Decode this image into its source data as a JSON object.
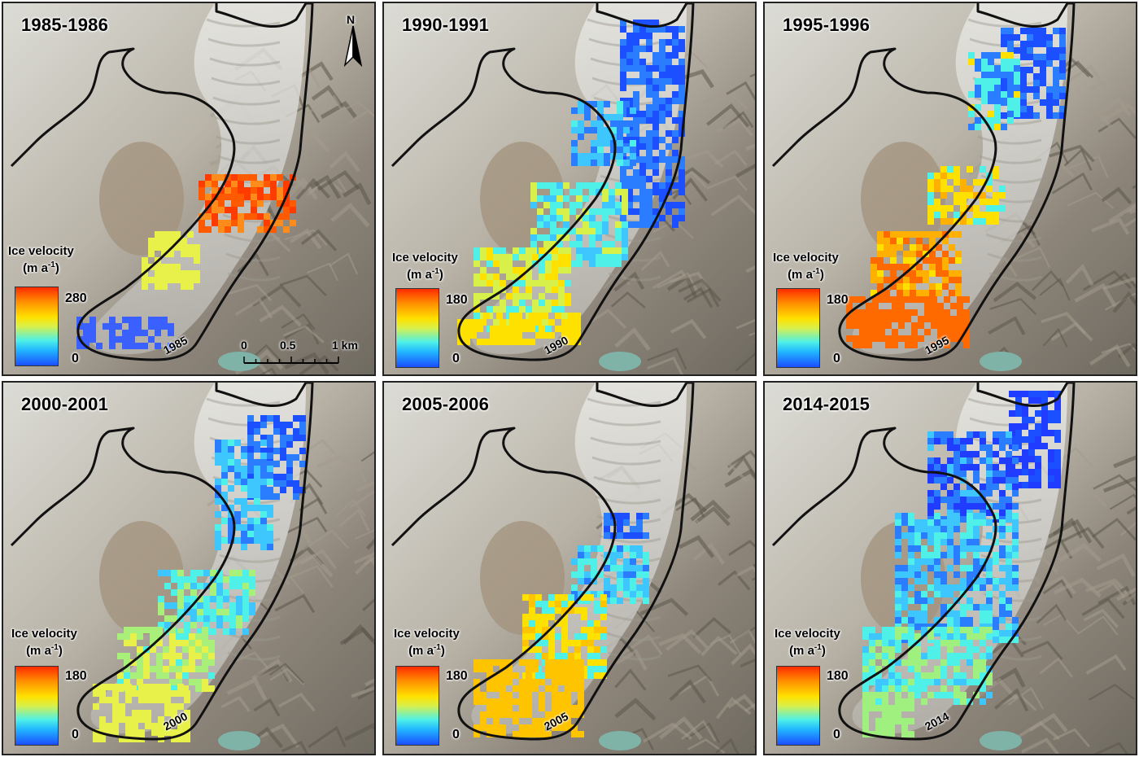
{
  "figure": {
    "legend_title_line1": "Ice velocity",
    "legend_unit_base": "(m a",
    "legend_unit_exp": "-1",
    "legend_unit_close": ")",
    "colors": {
      "high": "#ff2a00",
      "mid_high": "#ffe100",
      "mid": "#4ef0e8",
      "low": "#1b4fff",
      "outline": "#111111"
    },
    "north_label": "N",
    "scale_bar": {
      "labels": [
        "0",
        "0.5",
        "1 km"
      ]
    }
  },
  "panels": [
    {
      "title": "1985-1986",
      "year_label": "1985",
      "legend_max": "280",
      "legend_min": "0"
    },
    {
      "title": "1990-1991",
      "year_label": "1990",
      "legend_max": "180",
      "legend_min": "0"
    },
    {
      "title": "1995-1996",
      "year_label": "1995",
      "legend_max": "180",
      "legend_min": "0"
    },
    {
      "title": "2000-2001",
      "year_label": "2000",
      "legend_max": "180",
      "legend_min": "0"
    },
    {
      "title": "2005-2006",
      "year_label": "2005",
      "legend_max": "180",
      "legend_min": "0"
    },
    {
      "title": "2014-2015",
      "year_label": "2014",
      "legend_max": "180",
      "legend_min": "0"
    }
  ]
}
